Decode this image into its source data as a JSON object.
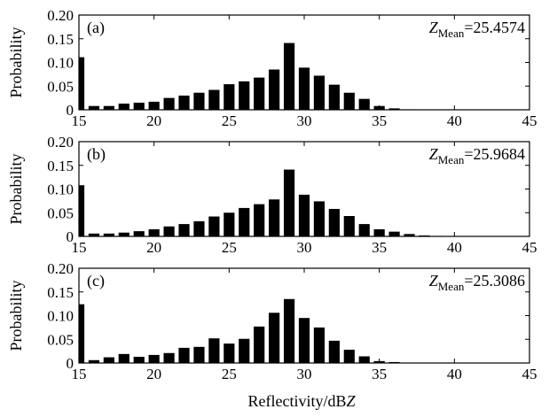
{
  "chart_data": [
    {
      "type": "bar",
      "panel_label": "(a)",
      "mean_symbol": "Z",
      "mean_subscript": "Mean",
      "mean_value": "=25.4574",
      "ylabel": "Probability",
      "xlim": [
        15,
        45
      ],
      "ylim": [
        0,
        0.2
      ],
      "xticks": [
        "15",
        "20",
        "25",
        "30",
        "35",
        "40",
        "45"
      ],
      "yticks": [
        "0",
        "0.05",
        "0.10",
        "0.15",
        "0.20"
      ],
      "x": [
        15,
        16,
        17,
        18,
        19,
        20,
        21,
        22,
        23,
        24,
        25,
        26,
        27,
        28,
        29,
        30,
        31,
        32,
        33,
        34,
        35,
        36,
        37,
        38,
        39,
        40,
        41,
        42,
        43,
        44
      ],
      "values": [
        0.111,
        0.008,
        0.008,
        0.013,
        0.015,
        0.017,
        0.025,
        0.03,
        0.036,
        0.042,
        0.054,
        0.06,
        0.068,
        0.085,
        0.141,
        0.089,
        0.072,
        0.053,
        0.036,
        0.023,
        0.008,
        0.003,
        0.001,
        0,
        0,
        0,
        0,
        0,
        0,
        0
      ]
    },
    {
      "type": "bar",
      "panel_label": "(b)",
      "mean_symbol": "Z",
      "mean_subscript": "Mean",
      "mean_value": "=25.9684",
      "ylabel": "Probability",
      "xlim": [
        15,
        45
      ],
      "ylim": [
        0,
        0.2
      ],
      "xticks": [
        "15",
        "20",
        "25",
        "30",
        "35",
        "40",
        "45"
      ],
      "yticks": [
        "0",
        "0.05",
        "0.10",
        "0.15",
        "0.20"
      ],
      "x": [
        15,
        16,
        17,
        18,
        19,
        20,
        21,
        22,
        23,
        24,
        25,
        26,
        27,
        28,
        29,
        30,
        31,
        32,
        33,
        34,
        35,
        36,
        37,
        38,
        39,
        40,
        41,
        42,
        43,
        44
      ],
      "values": [
        0.108,
        0.006,
        0.006,
        0.008,
        0.011,
        0.015,
        0.021,
        0.026,
        0.032,
        0.042,
        0.05,
        0.06,
        0.068,
        0.078,
        0.141,
        0.088,
        0.074,
        0.058,
        0.043,
        0.026,
        0.015,
        0.01,
        0.005,
        0.002,
        0.001,
        0,
        0,
        0,
        0,
        0
      ]
    },
    {
      "type": "bar",
      "panel_label": "(c)",
      "mean_symbol": "Z",
      "mean_subscript": "Mean",
      "mean_value": "=25.3086",
      "ylabel": "Probability",
      "xlabel_text": "Reflectivity/dB",
      "xlabel_italic": "Z",
      "xlim": [
        15,
        45
      ],
      "ylim": [
        0,
        0.2
      ],
      "xticks": [
        "15",
        "20",
        "25",
        "30",
        "35",
        "40",
        "45"
      ],
      "yticks": [
        "0",
        "0.05",
        "0.10",
        "0.15",
        "0.20"
      ],
      "x": [
        15,
        16,
        17,
        18,
        19,
        20,
        21,
        22,
        23,
        24,
        25,
        26,
        27,
        28,
        29,
        30,
        31,
        32,
        33,
        34,
        35,
        36,
        37,
        38,
        39,
        40,
        41,
        42,
        43,
        44
      ],
      "values": [
        0.124,
        0.006,
        0.012,
        0.019,
        0.013,
        0.017,
        0.021,
        0.032,
        0.034,
        0.052,
        0.041,
        0.051,
        0.077,
        0.106,
        0.135,
        0.095,
        0.075,
        0.047,
        0.028,
        0.014,
        0.004,
        0.002,
        0,
        0,
        0,
        0,
        0,
        0,
        0,
        0
      ]
    }
  ]
}
